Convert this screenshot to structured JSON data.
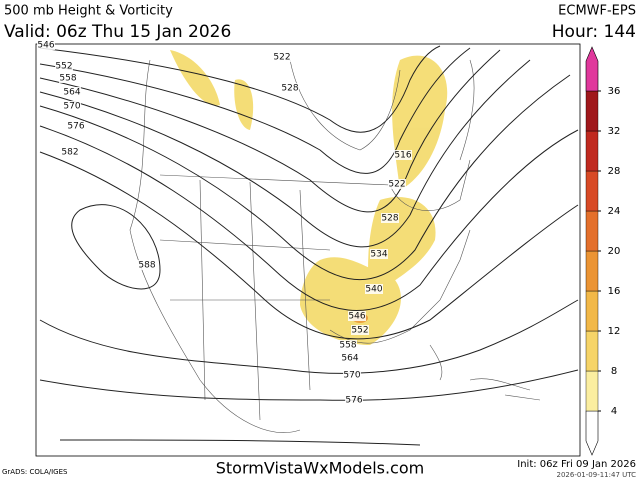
{
  "header": {
    "title": "500 mb Height & Vorticity",
    "valid": "Valid: 06z Thu 15 Jan 2026",
    "model": "ECMWF-EPS",
    "hour": "Hour: 144"
  },
  "contour_labels": [
    "546",
    "552",
    "558",
    "564",
    "570",
    "576",
    "582",
    "588",
    "522",
    "528",
    "516",
    "522",
    "528",
    "534",
    "540",
    "546",
    "552",
    "558",
    "564",
    "570",
    "576"
  ],
  "colorbar": {
    "ticks": [
      4,
      8,
      12,
      16,
      20,
      24,
      28,
      32,
      36
    ],
    "colors": [
      "#fbeea0",
      "#f6d468",
      "#f2b848",
      "#eb9434",
      "#e4702c",
      "#d84a26",
      "#c02a20",
      "#a0181c"
    ],
    "top_color": "#e0389c"
  },
  "footer": {
    "credit": "GrADS: COLA/IGES",
    "site": "StormVistaWxModels.com",
    "init": "Init: 06z Fri 09 Jan 2026",
    "timestamp": "2026-01-09-11:47 UTC"
  }
}
